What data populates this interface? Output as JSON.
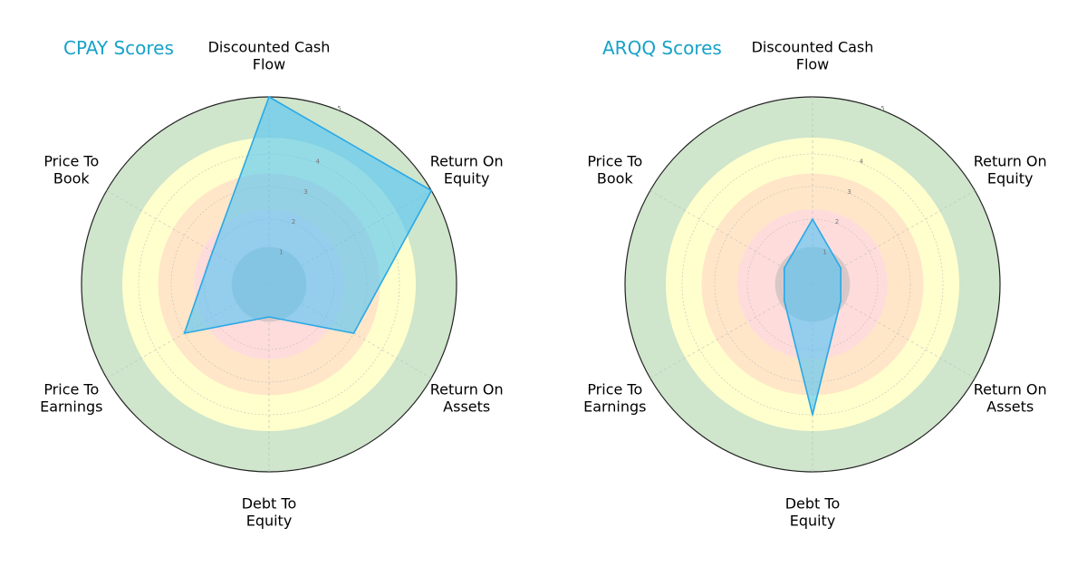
{
  "chart_data": [
    {
      "type": "radar",
      "title": "CPAY Scores",
      "categories": [
        "Discounted Cash Flow",
        "Return On Equity",
        "Return On Assets",
        "Debt To Equity",
        "Price To Earnings",
        "Price To Book"
      ],
      "category_lines": [
        [
          "Discounted Cash",
          "Flow"
        ],
        [
          "Return On",
          "Equity"
        ],
        [
          "Return On",
          "Assets"
        ],
        [
          "Debt To",
          "Equity"
        ],
        [
          "Price To",
          "Earnings"
        ],
        [
          "Price To",
          "Book"
        ]
      ],
      "series": [
        {
          "values": [
            5,
            5,
            3,
            1,
            3,
            2
          ]
        }
      ],
      "rlim": [
        0,
        5
      ],
      "radial_ticks": [
        "1",
        "2",
        "3",
        "4",
        "5"
      ],
      "grid": true
    },
    {
      "type": "radar",
      "title": "ARQQ Scores",
      "categories": [
        "Discounted Cash Flow",
        "Return On Equity",
        "Return On Assets",
        "Debt To Equity",
        "Price To Earnings",
        "Price To Book"
      ],
      "category_lines": [
        [
          "Discounted Cash",
          "Flow"
        ],
        [
          "Return On",
          "Equity"
        ],
        [
          "Return On",
          "Assets"
        ],
        [
          "Debt To",
          "Equity"
        ],
        [
          "Price To",
          "Earnings"
        ],
        [
          "Price To",
          "Book"
        ]
      ],
      "series": [
        {
          "values": [
            2,
            1,
            1,
            4,
            1,
            1
          ]
        }
      ],
      "rlim": [
        0,
        5
      ],
      "radial_ticks": [
        "1",
        "2",
        "3",
        "4",
        "5"
      ],
      "grid": true
    }
  ],
  "colors": {
    "title": "#17a2c8",
    "series_fill": "#4fc3f7",
    "series_stroke": "#29a9e6",
    "band_inner": "#b8b8b8",
    "band_red": "#ffdcdc",
    "band_orange": "#ffe6c8",
    "band_yellow": "#ffffcd",
    "band_green": "#cfe5cc",
    "outer_ring": "#222222",
    "grid": "#c0c0c0"
  }
}
